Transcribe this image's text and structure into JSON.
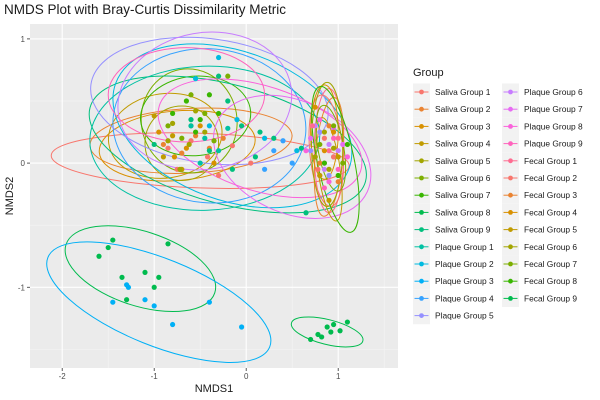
{
  "chart_data": {
    "type": "scatter",
    "title": "NMDS Plot with Bray-Curtis Dissimilarity Metric",
    "xlabel": "NMDS1",
    "ylabel": "NMDS2",
    "xlim": [
      -2.35,
      1.65
    ],
    "ylim": [
      -1.65,
      1.12
    ],
    "x_ticks": [
      -2,
      -1,
      0,
      1
    ],
    "y_ticks": [
      -1,
      0,
      1
    ],
    "grid": true,
    "legend": {
      "title": "Group",
      "placement": "right",
      "columns": 2
    },
    "series": [
      {
        "name": "Saliva Group 1",
        "color": "#F8766D",
        "points": [
          [
            -0.75,
            -0.05
          ],
          [
            -0.42,
            0.05
          ],
          [
            -0.85,
            0.12
          ],
          [
            -0.3,
            -0.1
          ],
          [
            -0.6,
            0.18
          ],
          [
            0.05,
            0.0
          ],
          [
            -0.15,
            0.14
          ]
        ],
        "ellipse": {
          "center": [
            -0.5,
            0.02
          ],
          "radii": [
            1.62,
            0.22
          ],
          "angle_deg": -2
        }
      },
      {
        "name": "Saliva Group 2",
        "color": "#EA8331",
        "points": [
          [
            -0.9,
            0.15
          ],
          [
            -0.55,
            0.22
          ],
          [
            -0.7,
            0.08
          ],
          [
            -0.4,
            0.12
          ],
          [
            -0.25,
            0.2
          ]
        ],
        "ellipse": {
          "center": [
            -0.6,
            0.18
          ],
          "radii": [
            1.1,
            0.26
          ],
          "angle_deg": 3
        }
      },
      {
        "name": "Saliva Group 3",
        "color": "#D89000",
        "points": [
          [
            -0.95,
            0.25
          ],
          [
            -0.78,
            0.05
          ],
          [
            -0.5,
            0.3
          ],
          [
            -0.65,
            0.12
          ],
          [
            -0.35,
            0.0
          ]
        ],
        "ellipse": {
          "center": [
            -0.75,
            0.14
          ],
          "radii": [
            0.85,
            0.28
          ],
          "angle_deg": 5
        }
      },
      {
        "name": "Saliva Group 4",
        "color": "#C09B00",
        "points": [
          [
            -1.0,
            0.38
          ],
          [
            -0.8,
            0.22
          ],
          [
            -0.6,
            0.3
          ],
          [
            -0.9,
            0.05
          ],
          [
            -0.7,
            -0.05
          ]
        ],
        "ellipse": {
          "center": [
            -0.88,
            0.22
          ],
          "radii": [
            0.62,
            0.34
          ],
          "angle_deg": 8
        }
      },
      {
        "name": "Saliva Group 5",
        "color": "#A3A500",
        "points": [
          [
            -0.8,
            0.32
          ],
          [
            -0.62,
            0.15
          ],
          [
            -0.72,
            -0.05
          ],
          [
            -0.55,
            0.42
          ],
          [
            -0.85,
            0.18
          ],
          [
            -0.45,
            0.25
          ]
        ],
        "ellipse": {
          "center": [
            -0.7,
            0.16
          ],
          "radii": [
            0.4,
            0.3
          ],
          "angle_deg": 0
        }
      },
      {
        "name": "Saliva Group 6",
        "color": "#7CAE00",
        "points": [
          [
            -0.6,
            0.55
          ],
          [
            -0.85,
            0.3
          ],
          [
            -0.45,
            0.4
          ],
          [
            -0.7,
            0.2
          ],
          [
            -0.35,
            0.18
          ],
          [
            -0.2,
            0.7
          ]
        ],
        "ellipse": {
          "center": [
            -0.62,
            0.34
          ],
          "radii": [
            0.52,
            0.42
          ],
          "angle_deg": 10
        }
      },
      {
        "name": "Saliva Group 7",
        "color": "#39B600",
        "points": [
          [
            -0.65,
            0.5
          ],
          [
            -0.5,
            0.35
          ],
          [
            -0.8,
            0.4
          ],
          [
            -0.4,
            0.55
          ],
          [
            -0.55,
            0.25
          ],
          [
            -0.3,
            0.4
          ]
        ],
        "ellipse": {
          "center": [
            -0.55,
            0.38
          ],
          "radii": [
            0.6,
            0.32
          ],
          "angle_deg": 5
        }
      },
      {
        "name": "Saliva Group 8",
        "color": "#00BB4E",
        "points": [
          [
            -1.6,
            -0.75
          ],
          [
            -1.45,
            -0.62
          ],
          [
            -1.35,
            -0.92
          ],
          [
            -1.1,
            -0.88
          ],
          [
            -0.95,
            -0.92
          ],
          [
            -0.85,
            -0.65
          ],
          [
            -1.3,
            -1.1
          ],
          [
            -1.5,
            -0.68
          ],
          [
            -1.0,
            -1.0
          ]
        ],
        "ellipse": {
          "center": [
            -1.15,
            -0.85
          ],
          "radii": [
            0.85,
            0.3
          ],
          "angle_deg": -18
        }
      },
      {
        "name": "Saliva Group 9",
        "color": "#00BF7D",
        "points": [
          [
            -0.2,
            0.5
          ],
          [
            -0.05,
            0.3
          ],
          [
            -0.4,
            0.1
          ],
          [
            -1.0,
            0.15
          ],
          [
            0.1,
            0.05
          ],
          [
            -0.6,
            0.35
          ],
          [
            0.3,
            0.2
          ],
          [
            0.6,
            0.12
          ],
          [
            -0.3,
            0.7
          ],
          [
            0.15,
            0.25
          ],
          [
            0.65,
            -0.4
          ],
          [
            -0.15,
            -0.05
          ]
        ],
        "ellipse": {
          "center": [
            -0.2,
            0.15
          ],
          "radii": [
            1.55,
            0.48
          ],
          "angle_deg": -15
        }
      },
      {
        "name": "Plaque Group 1",
        "color": "#00C1A3",
        "points": [
          [
            -0.45,
            0.2
          ],
          [
            -0.3,
            0.1
          ],
          [
            -0.6,
            0.3
          ],
          [
            -0.2,
            0.28
          ],
          [
            -0.5,
            0.0
          ]
        ],
        "ellipse": {
          "center": [
            -0.45,
            0.2
          ],
          "radii": [
            1.25,
            0.58
          ],
          "angle_deg": 2
        }
      },
      {
        "name": "Plaque Group 2",
        "color": "#00BAE0",
        "points": [
          [
            -0.3,
            0.85
          ],
          [
            -0.55,
            0.68
          ],
          [
            -0.1,
            0.35
          ],
          [
            0.2,
            0.2
          ],
          [
            0.55,
            0.1
          ],
          [
            -0.4,
            0.3
          ]
        ],
        "ellipse": {
          "center": [
            -0.15,
            0.3
          ],
          "radii": [
            1.35,
            0.6
          ],
          "angle_deg": -20
        }
      },
      {
        "name": "Plaque Group 3",
        "color": "#00B0F6",
        "points": [
          [
            -1.45,
            -1.12
          ],
          [
            -1.3,
            -0.98
          ],
          [
            -1.1,
            -1.1
          ],
          [
            -0.8,
            -1.3
          ],
          [
            -0.4,
            -1.12
          ],
          [
            -0.05,
            -1.32
          ],
          [
            -1.0,
            -1.15
          ],
          [
            -1.28,
            -1.0
          ]
        ],
        "ellipse": {
          "center": [
            -0.95,
            -1.12
          ],
          "radii": [
            1.3,
            0.35
          ],
          "angle_deg": -22
        }
      },
      {
        "name": "Plaque Group 4",
        "color": "#35A2FF",
        "points": [
          [
            0.3,
            0.1
          ],
          [
            0.5,
            0.0
          ],
          [
            0.2,
            -0.05
          ],
          [
            0.4,
            0.18
          ]
        ],
        "ellipse": {
          "center": [
            -0.4,
            0.3
          ],
          "radii": [
            1.05,
            0.62
          ],
          "angle_deg": -5
        }
      },
      {
        "name": "Plaque Group 5",
        "color": "#9590FF",
        "points": [
          [
            0.7,
            0.1
          ],
          [
            0.9,
            -0.1
          ],
          [
            0.8,
            0.25
          ],
          [
            0.95,
            0.05
          ]
        ],
        "ellipse": {
          "center": [
            -0.4,
            0.5
          ],
          "radii": [
            1.3,
            0.5
          ],
          "angle_deg": -8
        }
      },
      {
        "name": "Plaque Group 6",
        "color": "#C77CFF",
        "points": [
          [
            0.75,
            0.3
          ],
          [
            0.9,
            0.15
          ],
          [
            0.85,
            -0.05
          ],
          [
            1.0,
            0.1
          ]
        ],
        "ellipse": {
          "center": [
            -0.45,
            0.5
          ],
          "radii": [
            0.95,
            0.55
          ],
          "angle_deg": 10
        }
      },
      {
        "name": "Plaque Group 7",
        "color": "#E76BF3",
        "points": [
          [
            0.7,
            0.2
          ],
          [
            0.95,
            0.28
          ],
          [
            0.85,
            0.0
          ],
          [
            1.05,
            0.15
          ]
        ],
        "ellipse": {
          "center": [
            0.5,
            0.05
          ],
          "radii": [
            0.9,
            0.45
          ],
          "angle_deg": -25
        }
      },
      {
        "name": "Plaque Group 8",
        "color": "#FA62DB",
        "points": [
          [
            0.8,
            0.35
          ],
          [
            0.65,
            0.1
          ],
          [
            0.9,
            -0.15
          ],
          [
            1.1,
            0.05
          ]
        ],
        "ellipse": {
          "center": [
            0.15,
            0.2
          ],
          "radii": [
            1.15,
            0.42
          ],
          "angle_deg": -18
        }
      },
      {
        "name": "Plaque Group 9",
        "color": "#FF62BC",
        "points": [
          [
            0.75,
            0.05
          ],
          [
            0.95,
            0.2
          ],
          [
            0.85,
            -0.2
          ],
          [
            1.0,
            -0.05
          ]
        ],
        "ellipse": {
          "center": [
            -0.65,
            0.55
          ],
          "radii": [
            0.85,
            0.38
          ],
          "angle_deg": 0
        }
      },
      {
        "name": "Fecal Group 1",
        "color": "#FF6C91",
        "points": [
          [
            0.72,
            0.3
          ],
          [
            0.9,
            0.1
          ],
          [
            0.8,
            -0.1
          ],
          [
            1.0,
            0.2
          ]
        ],
        "ellipse": {
          "center": [
            0.9,
            0.1
          ],
          "radii": [
            0.16,
            0.5
          ],
          "angle_deg": 0
        }
      },
      {
        "name": "Fecal Group 2",
        "color": "#F8766D",
        "points": [
          [
            0.85,
            0.2
          ],
          [
            0.78,
            -0.05
          ],
          [
            0.95,
            0.05
          ]
        ],
        "ellipse": {
          "center": [
            0.87,
            0.1
          ],
          "radii": [
            0.18,
            0.45
          ],
          "angle_deg": 5
        }
      },
      {
        "name": "Fecal Group 3",
        "color": "#EA8331",
        "points": [
          [
            0.9,
            0.3
          ],
          [
            0.8,
            0.0
          ],
          [
            1.0,
            -0.15
          ]
        ],
        "ellipse": {
          "center": [
            0.9,
            0.05
          ],
          "radii": [
            0.15,
            0.48
          ],
          "angle_deg": -5
        }
      },
      {
        "name": "Fecal Group 4",
        "color": "#D89000",
        "points": [
          [
            0.75,
            0.45
          ],
          [
            0.95,
            0.25
          ],
          [
            0.85,
            0.1
          ]
        ],
        "ellipse": {
          "center": [
            0.85,
            0.25
          ],
          "radii": [
            0.15,
            0.38
          ],
          "angle_deg": 0
        }
      },
      {
        "name": "Fecal Group 5",
        "color": "#C09B00",
        "points": [
          [
            0.8,
            -0.1
          ],
          [
            1.0,
            0.05
          ],
          [
            0.9,
            -0.3
          ]
        ],
        "ellipse": {
          "center": [
            0.9,
            -0.05
          ],
          "radii": [
            0.12,
            0.42
          ],
          "angle_deg": 8
        }
      },
      {
        "name": "Fecal Group 6",
        "color": "#A3A500",
        "points": [
          [
            0.85,
            0.25
          ],
          [
            0.75,
            0.05
          ],
          [
            0.95,
            0.12
          ],
          [
            0.9,
            -0.05
          ]
        ],
        "ellipse": {
          "center": [
            0.88,
            0.15
          ],
          "radii": [
            0.17,
            0.5
          ],
          "angle_deg": 0
        }
      },
      {
        "name": "Fecal Group 7",
        "color": "#7CAE00",
        "points": [
          [
            0.95,
            0.3
          ],
          [
            0.8,
            0.15
          ],
          [
            1.05,
            0.0
          ]
        ],
        "ellipse": {
          "center": [
            0.92,
            0.12
          ],
          "radii": [
            0.14,
            0.35
          ],
          "angle_deg": 10
        }
      },
      {
        "name": "Fecal Group 8",
        "color": "#39B600",
        "points": [
          [
            1.1,
            0.15
          ],
          [
            0.85,
            0.0
          ],
          [
            1.0,
            -0.1
          ]
        ],
        "ellipse": {
          "center": [
            0.97,
            0.03
          ],
          "radii": [
            0.2,
            0.6
          ],
          "angle_deg": 12
        }
      },
      {
        "name": "Fecal Group 9",
        "color": "#00BB4E",
        "points": [
          [
            0.7,
            -1.42
          ],
          [
            0.78,
            -1.38
          ],
          [
            0.88,
            -1.32
          ],
          [
            0.95,
            -1.3
          ],
          [
            1.02,
            -1.35
          ],
          [
            0.82,
            -1.4
          ],
          [
            1.1,
            -1.28
          ],
          [
            0.92,
            -1.36
          ]
        ],
        "ellipse": {
          "center": [
            0.88,
            -1.36
          ],
          "radii": [
            0.4,
            0.1
          ],
          "angle_deg": -14
        }
      }
    ]
  }
}
